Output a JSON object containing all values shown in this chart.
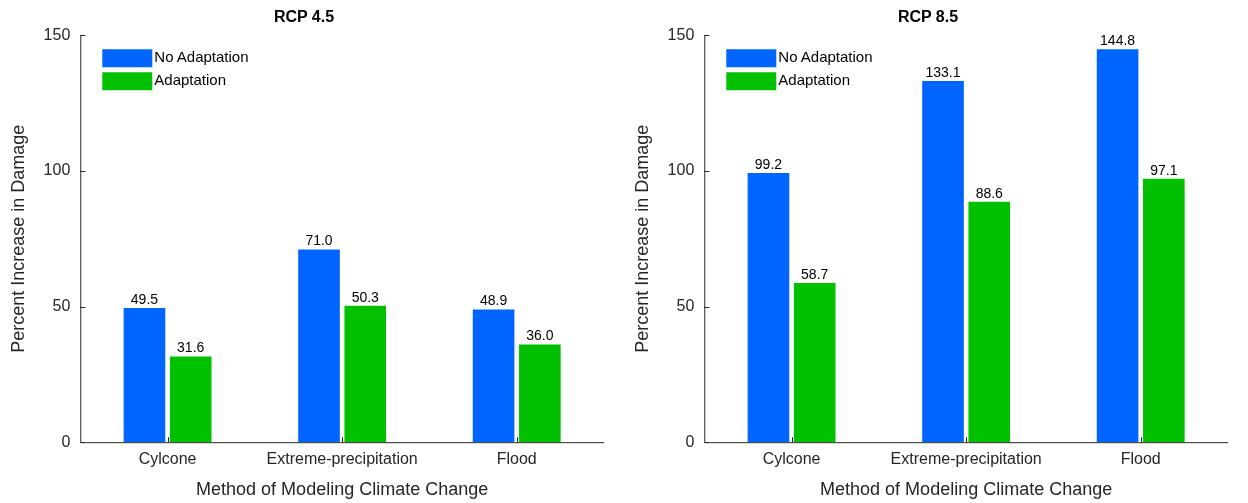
{
  "chart_data": [
    {
      "type": "bar",
      "title": "RCP 4.5",
      "xlabel": "Method of Modeling Climate Change",
      "ylabel": "Percent Increase in Damage",
      "categories": [
        "Cylcone",
        "Extreme-precipitation",
        "Flood"
      ],
      "series": [
        {
          "name": "No Adaptation",
          "color": "#0064ff",
          "values": [
            49.5,
            71.0,
            48.9
          ],
          "value_labels": [
            "49.5",
            "71.0",
            "48.9"
          ]
        },
        {
          "name": "Adaptation",
          "color": "#00c000",
          "values": [
            31.6,
            50.3,
            36.0
          ],
          "value_labels": [
            "31.6",
            "50.3",
            "36.0"
          ]
        }
      ],
      "ylim": [
        0,
        150
      ],
      "yticks": [
        0,
        50,
        100,
        150
      ],
      "grid": false,
      "legend": "top left"
    },
    {
      "type": "bar",
      "title": "RCP 8.5",
      "xlabel": "Method of Modeling Climate Change",
      "ylabel": "Percent Increase in Damage",
      "categories": [
        "Cylcone",
        "Extreme-precipitation",
        "Flood"
      ],
      "series": [
        {
          "name": "No Adaptation",
          "color": "#0064ff",
          "values": [
            99.2,
            133.1,
            144.8
          ],
          "value_labels": [
            "99.2",
            "133.1",
            "144.8"
          ]
        },
        {
          "name": "Adaptation",
          "color": "#00c000",
          "values": [
            58.7,
            88.6,
            97.1
          ],
          "value_labels": [
            "58.7",
            "88.6",
            "97.1"
          ]
        }
      ],
      "ylim": [
        0,
        150
      ],
      "yticks": [
        0,
        50,
        100,
        150
      ],
      "grid": false,
      "legend": "top left"
    }
  ]
}
